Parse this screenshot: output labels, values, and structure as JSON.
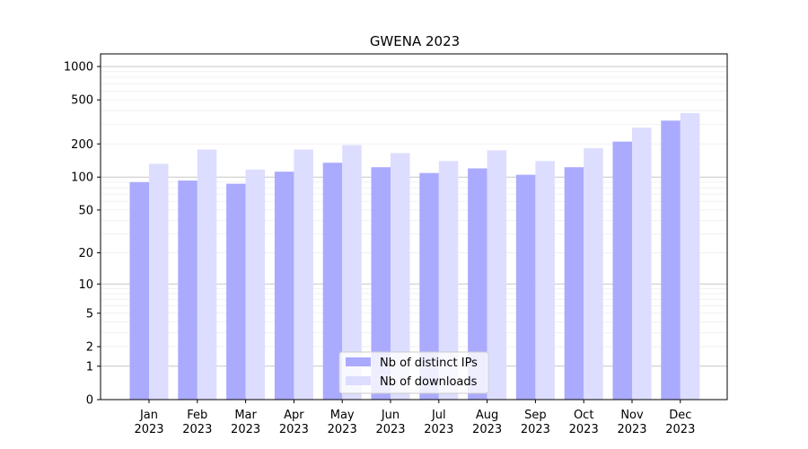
{
  "chart_data": {
    "type": "bar",
    "title": "GWENA 2023",
    "xlabel": "",
    "ylabel": "",
    "yscale": "symlog",
    "ylim": [
      0,
      1300
    ],
    "y_ticks": [
      0,
      1,
      2,
      5,
      10,
      20,
      50,
      100,
      200,
      500,
      1000
    ],
    "grid": "horizontal",
    "legend_position": "bottom-center",
    "categories": [
      {
        "month": "Jan",
        "year": "2023"
      },
      {
        "month": "Feb",
        "year": "2023"
      },
      {
        "month": "Mar",
        "year": "2023"
      },
      {
        "month": "Apr",
        "year": "2023"
      },
      {
        "month": "May",
        "year": "2023"
      },
      {
        "month": "Jun",
        "year": "2023"
      },
      {
        "month": "Jul",
        "year": "2023"
      },
      {
        "month": "Aug",
        "year": "2023"
      },
      {
        "month": "Sep",
        "year": "2023"
      },
      {
        "month": "Oct",
        "year": "2023"
      },
      {
        "month": "Nov",
        "year": "2023"
      },
      {
        "month": "Dec",
        "year": "2023"
      }
    ],
    "series": [
      {
        "name": "Nb of distinct IPs",
        "color": "#aaaaff",
        "values": [
          90,
          93,
          87,
          112,
          135,
          123,
          109,
          120,
          105,
          123,
          210,
          325
        ]
      },
      {
        "name": "Nb of downloads",
        "color": "#ddddff",
        "values": [
          132,
          178,
          117,
          178,
          195,
          165,
          140,
          175,
          140,
          183,
          280,
          380
        ]
      }
    ]
  }
}
